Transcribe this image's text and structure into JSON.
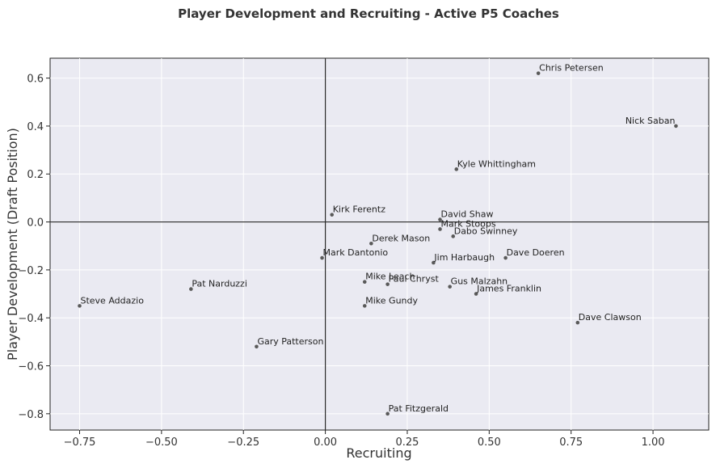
{
  "chart_data": {
    "type": "scatter",
    "title": "Player Development and Recruiting - Active P5 Coaches",
    "xlabel": "Recruiting",
    "ylabel": "Player Development (Draft Position)",
    "xlim": [
      -0.84,
      1.17
    ],
    "ylim": [
      -0.868,
      0.683
    ],
    "x_ticks": [
      -0.75,
      -0.5,
      -0.25,
      0.0,
      0.25,
      0.5,
      0.75,
      1.0
    ],
    "x_tick_labels": [
      "−0.75",
      "−0.50",
      "−0.25",
      "0.00",
      "0.25",
      "0.50",
      "0.75",
      "1.00"
    ],
    "y_ticks": [
      -0.8,
      -0.6,
      -0.4,
      -0.2,
      0.0,
      0.2,
      0.4,
      0.6
    ],
    "y_tick_labels": [
      "−0.8",
      "−0.6",
      "−0.4",
      "−0.2",
      "0.0",
      "0.2",
      "0.4",
      "0.6"
    ],
    "grid": true,
    "reference_lines": {
      "x": 0,
      "y": 0
    },
    "point_color": "#5a5a5a",
    "points": [
      {
        "label": "Chris Petersen",
        "x": 0.65,
        "y": 0.62
      },
      {
        "label": "Nick Saban",
        "x": 1.07,
        "y": 0.4
      },
      {
        "label": "Kyle Whittingham",
        "x": 0.4,
        "y": 0.22
      },
      {
        "label": "Kirk Ferentz",
        "x": 0.02,
        "y": 0.03
      },
      {
        "label": "David Shaw",
        "x": 0.35,
        "y": 0.01
      },
      {
        "label": "Mark Stoops",
        "x": 0.35,
        "y": -0.03
      },
      {
        "label": "Dabo Swinney",
        "x": 0.39,
        "y": -0.06
      },
      {
        "label": "Derek Mason",
        "x": 0.14,
        "y": -0.09
      },
      {
        "label": "Dave Doeren",
        "x": 0.55,
        "y": -0.15
      },
      {
        "label": "Mark Dantonio",
        "x": -0.01,
        "y": -0.15
      },
      {
        "label": "Jim Harbaugh",
        "x": 0.33,
        "y": -0.17
      },
      {
        "label": "Mike Leach",
        "x": 0.12,
        "y": -0.25
      },
      {
        "label": "Paul Chryst",
        "x": 0.19,
        "y": -0.26
      },
      {
        "label": "Gus Malzahn",
        "x": 0.38,
        "y": -0.27
      },
      {
        "label": "James Franklin",
        "x": 0.46,
        "y": -0.3
      },
      {
        "label": "Pat Narduzzi",
        "x": -0.41,
        "y": -0.28
      },
      {
        "label": "Steve Addazio",
        "x": -0.75,
        "y": -0.35
      },
      {
        "label": "Mike Gundy",
        "x": 0.12,
        "y": -0.35
      },
      {
        "label": "Dave Clawson",
        "x": 0.77,
        "y": -0.42
      },
      {
        "label": "Gary Patterson",
        "x": -0.21,
        "y": -0.52
      },
      {
        "label": "Pat Fitzgerald",
        "x": 0.19,
        "y": -0.8
      }
    ]
  }
}
